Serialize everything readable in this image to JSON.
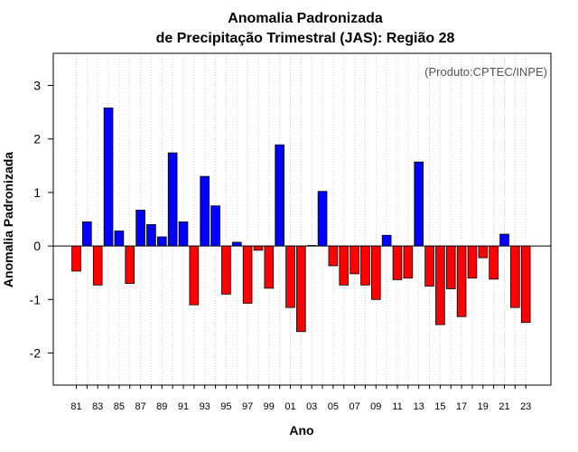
{
  "chart_data": {
    "type": "bar",
    "title": "Anomalia Padronizada",
    "subtitle": "de Precipitação Trimestral (JAS): Região 28",
    "xlabel": "Ano",
    "ylabel": "Anomalia Padronizada",
    "annotation": "(Produto:CPTEC/INPE)",
    "ylim": [
      -2.6,
      3.6
    ],
    "yticks": [
      -2,
      -1,
      0,
      1,
      2,
      3
    ],
    "grid": "vertical dotted lines",
    "positive_color": "#0000ff",
    "negative_color": "#ff0000",
    "categories": [
      "81",
      "82",
      "83",
      "84",
      "85",
      "86",
      "87",
      "88",
      "89",
      "90",
      "91",
      "92",
      "93",
      "94",
      "95",
      "96",
      "97",
      "98",
      "99",
      "00",
      "01",
      "02",
      "03",
      "04",
      "05",
      "06",
      "07",
      "08",
      "09",
      "10",
      "11",
      "12",
      "13",
      "14",
      "15",
      "16",
      "17",
      "18",
      "19",
      "20",
      "21",
      "22",
      "23"
    ],
    "tick_labels": [
      "81",
      "83",
      "85",
      "87",
      "89",
      "91",
      "93",
      "95",
      "97",
      "99",
      "01",
      "03",
      "05",
      "07",
      "09",
      "11",
      "13",
      "15",
      "17",
      "19",
      "21",
      "23"
    ],
    "values": [
      -0.47,
      0.45,
      -0.73,
      2.58,
      0.28,
      -0.7,
      0.67,
      0.4,
      0.17,
      1.74,
      0.45,
      -1.1,
      1.3,
      0.75,
      -0.9,
      0.07,
      -1.07,
      -0.08,
      -0.79,
      1.89,
      -1.15,
      -1.6,
      0.01,
      1.02,
      -0.37,
      -0.73,
      -0.52,
      -0.73,
      -1.0,
      0.2,
      -0.63,
      -0.6,
      1.57,
      -0.75,
      -1.47,
      -0.8,
      -1.32,
      -0.6,
      -0.22,
      -0.62,
      0.22,
      -1.15,
      -1.43
    ]
  }
}
